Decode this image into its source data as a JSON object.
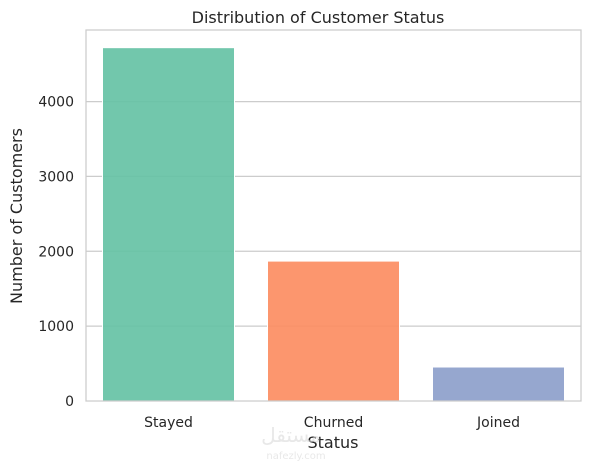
{
  "chart_data": {
    "type": "bar",
    "title": "Distribution of Customer Status",
    "xlabel": "Status",
    "ylabel": "Number of Customers",
    "categories": [
      "Stayed",
      "Churned",
      "Joined"
    ],
    "values": [
      4720,
      1869,
      454
    ],
    "colors": [
      "#66c2a5",
      "#fc8d62",
      "#8da0cb"
    ],
    "ylim": [
      0,
      4956
    ],
    "yticks": [
      0,
      1000,
      2000,
      3000,
      4000
    ],
    "grid": "y",
    "bar_opacity": 0.92
  },
  "watermark": {
    "text_ar": "مستقل",
    "text_en": "nafezly.com"
  }
}
